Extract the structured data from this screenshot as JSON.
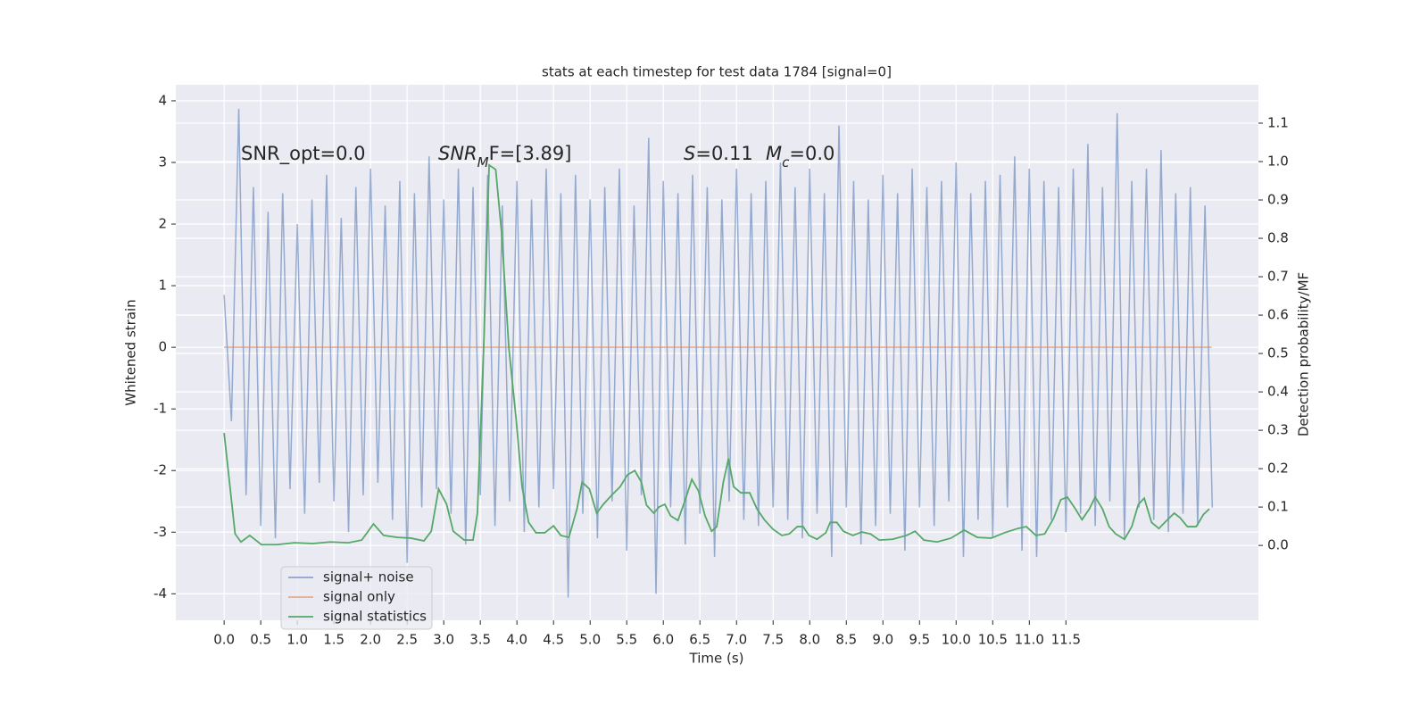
{
  "chart_data": {
    "type": "line",
    "title": "stats at each timestep for test data 1784 [signal=0]",
    "xlabel": "Time (s)",
    "ylabel": "Whitened strain",
    "y2label": "Detection probability/MF",
    "xlim": [
      -0.66,
      14.13
    ],
    "ylim": [
      -4.43,
      4.26
    ],
    "y2lim": [
      -0.195,
      1.2
    ],
    "xticks": [
      {
        "value": 0,
        "label": "0.0"
      },
      0.5,
      {
        "value": 1,
        "label": "1.0"
      },
      1.5,
      {
        "value": 2,
        "label": "2.0"
      },
      2.5,
      {
        "value": 3,
        "label": "3.0"
      },
      3.5,
      {
        "value": 4,
        "label": "4.0"
      },
      4.5,
      {
        "value": 5,
        "label": "5.0"
      },
      5.5,
      {
        "value": 6,
        "label": "6.0"
      },
      6.5,
      {
        "value": 7,
        "label": "7.0"
      },
      7.5,
      {
        "value": 8,
        "label": "8.0"
      },
      8.5,
      {
        "value": 9,
        "label": "9.0"
      },
      9.5,
      {
        "value": 10,
        "label": "10.0"
      },
      10.5,
      {
        "value": 11,
        "label": "11.0"
      },
      11.5
    ],
    "yticks": [
      -4,
      -3,
      -2,
      -1,
      0,
      1,
      2,
      3,
      4
    ],
    "y2ticks": [
      {
        "value": 0,
        "label": "0.0"
      },
      0.1,
      0.2,
      0.3,
      0.4,
      0.5,
      0.6,
      0.7,
      0.8,
      0.9,
      {
        "value": 1,
        "label": "1.0"
      },
      1.1
    ],
    "grid": true,
    "legend": "lower left",
    "annotations": [
      {
        "parts": [
          {
            "text": "SNR_opt=0.0"
          }
        ]
      },
      {
        "parts": [
          {
            "text": "SNR",
            "style": "italic"
          },
          {
            "text": "M",
            "style": "italic-sub"
          },
          {
            "text": "F=[3.89]"
          }
        ]
      },
      {
        "parts": [
          {
            "text": "S",
            "style": "italic"
          },
          {
            "text": "=0.11"
          }
        ]
      },
      {
        "parts": [
          {
            "text": "M",
            "style": "italic"
          },
          {
            "text": "c",
            "style": "italic-sub"
          },
          {
            "text": "=0.0"
          }
        ]
      }
    ],
    "series": [
      {
        "name": "signal+ noise",
        "color": "#4c72b0",
        "x": [
          0.0,
          0.1,
          0.2,
          0.3,
          0.4,
          0.5,
          0.6,
          0.7,
          0.8,
          0.9,
          1.0,
          1.1,
          1.2,
          1.3,
          1.4,
          1.5,
          1.6,
          1.7,
          1.8,
          1.9,
          2.0,
          2.1,
          2.2,
          2.3,
          2.4,
          2.5,
          2.6,
          2.7,
          2.8,
          2.9,
          3.0,
          3.1,
          3.2,
          3.3,
          3.4,
          3.5,
          3.6,
          3.7,
          3.8,
          3.9,
          4.0,
          4.1,
          4.2,
          4.3,
          4.4,
          4.5,
          4.6,
          4.7,
          4.8,
          4.9,
          5.0,
          5.1,
          5.2,
          5.3,
          5.4,
          5.5,
          5.6,
          5.7,
          5.8,
          5.9,
          6.0,
          6.1,
          6.2,
          6.3,
          6.4,
          6.5,
          6.6,
          6.7,
          6.8,
          6.9,
          7.0,
          7.1,
          7.2,
          7.3,
          7.4,
          7.5,
          7.6,
          7.7,
          7.8,
          7.9,
          8.0,
          8.1,
          8.2,
          8.3,
          8.4,
          8.5,
          8.6,
          8.7,
          8.8,
          8.9,
          9.0,
          9.1,
          9.2,
          9.3,
          9.4,
          9.5,
          9.6,
          9.7,
          9.8,
          9.9,
          10.0,
          10.1,
          10.2,
          10.3,
          10.4,
          10.5,
          10.6,
          10.7,
          10.8,
          10.9,
          11.0,
          11.1,
          11.2,
          11.3,
          11.4,
          11.5,
          11.6,
          11.7,
          11.8,
          11.9,
          12.0,
          12.1,
          12.2,
          12.3,
          12.4,
          12.5,
          12.6,
          12.7,
          12.8,
          12.9,
          13.0,
          13.1,
          13.2,
          13.3,
          13.4,
          13.5
        ],
        "values": [
          0.85,
          -1.2,
          3.87,
          -2.4,
          2.6,
          -2.9,
          2.2,
          -3.1,
          2.5,
          -2.3,
          2.0,
          -2.7,
          2.4,
          -2.2,
          2.8,
          -2.5,
          2.1,
          -3.0,
          2.6,
          -2.4,
          2.9,
          -2.2,
          2.3,
          -2.8,
          2.7,
          -3.5,
          2.5,
          -2.6,
          3.1,
          -2.3,
          2.4,
          -2.7,
          2.9,
          -3.2,
          2.6,
          -2.4,
          2.8,
          -2.9,
          2.3,
          -2.5,
          2.7,
          -3.0,
          2.4,
          -2.6,
          2.9,
          -2.3,
          2.5,
          -4.06,
          2.8,
          -2.7,
          2.4,
          -3.1,
          2.6,
          -2.5,
          2.9,
          -3.3,
          2.3,
          -2.4,
          3.4,
          -4.0,
          2.7,
          -2.6,
          2.5,
          -3.2,
          2.8,
          -2.7,
          2.6,
          -3.4,
          2.4,
          -2.5,
          2.9,
          -2.8,
          2.5,
          -2.9,
          2.7,
          -2.6,
          3.0,
          -2.8,
          2.6,
          -3.1,
          2.9,
          -2.7,
          2.5,
          -3.4,
          3.6,
          -2.6,
          2.7,
          -3.2,
          2.4,
          -2.9,
          2.8,
          -2.7,
          2.5,
          -3.3,
          2.9,
          -2.6,
          2.6,
          -2.9,
          2.7,
          -2.5,
          3.0,
          -3.4,
          2.5,
          -2.8,
          2.7,
          -3.1,
          2.8,
          -2.6,
          3.1,
          -3.3,
          2.9,
          -3.4,
          2.7,
          -2.8,
          2.6,
          -3.0,
          2.9,
          -2.7,
          3.3,
          -2.9,
          2.6,
          -2.5,
          3.8,
          -3.1,
          2.7,
          -2.6,
          2.9,
          -2.8,
          3.2,
          -3.0,
          2.5,
          -2.7,
          2.6,
          -2.9,
          2.3,
          -2.6
        ]
      },
      {
        "name": "signal only",
        "color": "#dd8452",
        "x": [
          0,
          13.49
        ],
        "values": [
          0,
          0
        ]
      },
      {
        "name": "signal statistics",
        "color": "#55a868",
        "axis": "y2",
        "x": [
          0.0,
          0.15,
          0.23,
          0.35,
          0.51,
          0.72,
          0.96,
          1.21,
          1.45,
          1.7,
          1.88,
          2.04,
          2.18,
          2.37,
          2.55,
          2.73,
          2.83,
          2.93,
          3.04,
          3.13,
          3.28,
          3.4,
          3.46,
          3.55,
          3.62,
          3.71,
          3.79,
          3.89,
          3.99,
          4.07,
          4.16,
          4.26,
          4.38,
          4.5,
          4.6,
          4.71,
          4.82,
          4.89,
          4.99,
          5.09,
          5.18,
          5.29,
          5.41,
          5.51,
          5.61,
          5.7,
          5.77,
          5.87,
          5.94,
          6.02,
          6.1,
          6.2,
          6.3,
          6.39,
          6.48,
          6.57,
          6.66,
          6.73,
          6.82,
          6.89,
          6.96,
          7.06,
          7.18,
          7.28,
          7.38,
          7.5,
          7.62,
          7.72,
          7.83,
          7.91,
          7.99,
          8.1,
          8.22,
          8.28,
          8.37,
          8.46,
          8.59,
          8.71,
          8.83,
          8.95,
          9.13,
          9.32,
          9.44,
          9.56,
          9.74,
          9.93,
          10.11,
          10.29,
          10.48,
          10.66,
          10.84,
          10.96,
          11.09,
          11.21,
          11.33,
          11.43,
          11.52,
          11.63,
          11.72,
          11.82,
          11.9,
          12.0,
          12.09,
          12.18,
          12.3,
          12.4,
          12.49,
          12.57,
          12.67,
          12.77,
          12.85,
          12.98,
          13.06,
          13.16,
          13.28,
          13.38,
          13.46
        ],
        "values": [
          0.293,
          0.03,
          0.009,
          0.026,
          0.002,
          0.002,
          0.007,
          0.005,
          0.009,
          0.007,
          0.014,
          0.056,
          0.026,
          0.021,
          0.019,
          0.012,
          0.037,
          0.147,
          0.107,
          0.037,
          0.014,
          0.014,
          0.084,
          0.537,
          0.991,
          0.979,
          0.816,
          0.514,
          0.328,
          0.153,
          0.06,
          0.033,
          0.033,
          0.051,
          0.026,
          0.021,
          0.095,
          0.165,
          0.147,
          0.084,
          0.107,
          0.13,
          0.153,
          0.184,
          0.195,
          0.165,
          0.105,
          0.084,
          0.1,
          0.107,
          0.077,
          0.065,
          0.119,
          0.172,
          0.142,
          0.077,
          0.037,
          0.049,
          0.165,
          0.226,
          0.153,
          0.137,
          0.137,
          0.095,
          0.067,
          0.042,
          0.026,
          0.03,
          0.049,
          0.049,
          0.026,
          0.016,
          0.033,
          0.06,
          0.06,
          0.037,
          0.026,
          0.035,
          0.03,
          0.014,
          0.016,
          0.026,
          0.037,
          0.014,
          0.009,
          0.019,
          0.04,
          0.021,
          0.019,
          0.033,
          0.044,
          0.049,
          0.026,
          0.03,
          0.07,
          0.119,
          0.126,
          0.095,
          0.067,
          0.095,
          0.126,
          0.095,
          0.049,
          0.03,
          0.016,
          0.049,
          0.107,
          0.123,
          0.06,
          0.044,
          0.06,
          0.084,
          0.072,
          0.049,
          0.049,
          0.081,
          0.095
        ]
      }
    ]
  }
}
